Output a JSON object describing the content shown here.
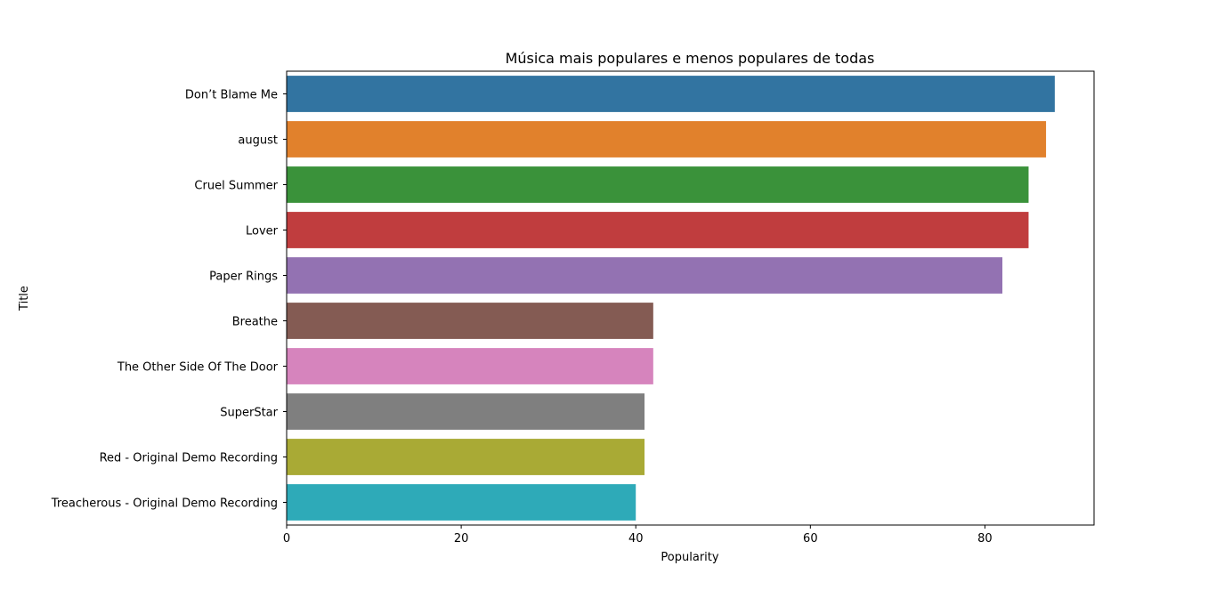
{
  "chart_data": {
    "type": "bar",
    "orientation": "horizontal",
    "title": "Música mais populares e menos populares de todas",
    "xlabel": "Popularity",
    "ylabel": "Title",
    "xlim": [
      0,
      92.5
    ],
    "xticks": [
      0,
      20,
      40,
      60,
      80
    ],
    "grid": false,
    "categories": [
      "Don’t Blame Me",
      "august",
      "Cruel Summer",
      "Lover",
      "Paper Rings",
      "Breathe",
      "The Other Side Of The Door",
      "SuperStar",
      "Red - Original Demo Recording",
      "Treacherous - Original Demo Recording"
    ],
    "values": [
      88,
      87,
      85,
      85,
      82,
      42,
      42,
      41,
      41,
      40
    ],
    "colors": [
      "#3274a1",
      "#e1812c",
      "#3a923a",
      "#c03d3e",
      "#9372b2",
      "#845b53",
      "#d684bd",
      "#7f7f7f",
      "#a9aa35",
      "#2eaab8"
    ]
  }
}
